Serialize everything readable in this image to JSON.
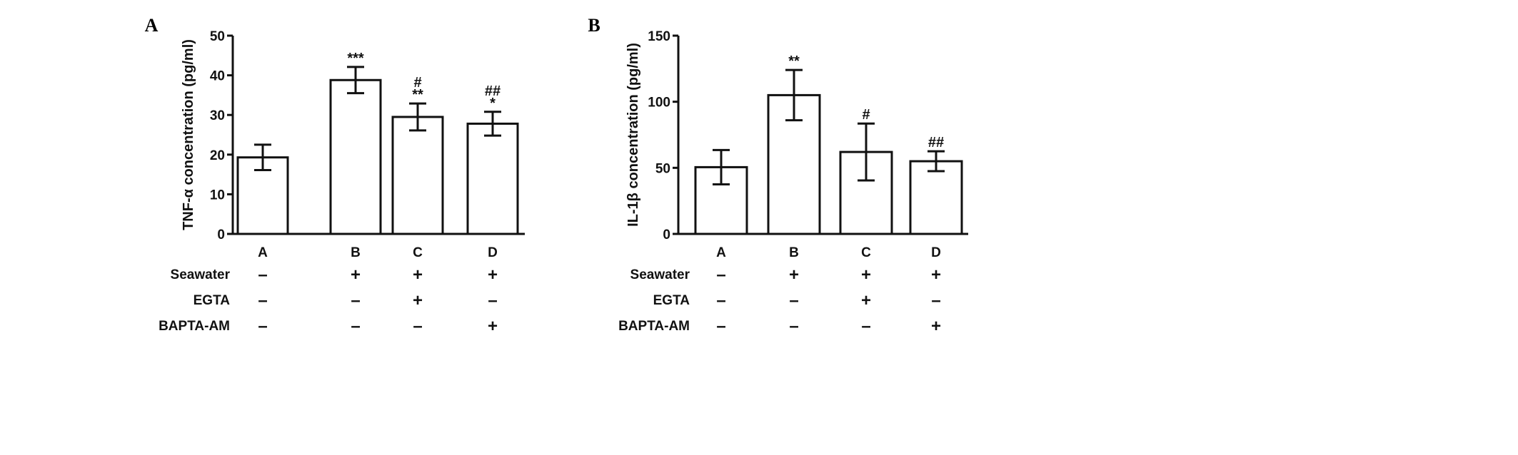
{
  "chart_data": [
    {
      "type": "bar",
      "panel_label": "A",
      "ylabel": "TNF-α concentration (pg/ml)",
      "ylim": [
        0,
        50
      ],
      "yticks": [
        "0",
        "10",
        "20",
        "30",
        "40",
        "50"
      ],
      "categories": [
        "A",
        "B",
        "C",
        "D"
      ],
      "values": [
        19.3,
        38.8,
        29.5,
        27.8
      ],
      "errors": [
        3.2,
        3.3,
        3.4,
        3.0
      ],
      "annotations": [
        "",
        "***",
        "#\n**",
        "##\n*"
      ],
      "grid": false,
      "bar_fill": "#ffffff",
      "bar_stroke": "#111111"
    },
    {
      "type": "bar",
      "panel_label": "B",
      "ylabel": "IL-1β concentration (pg/ml)",
      "ylim": [
        0,
        150
      ],
      "yticks": [
        "0",
        "50",
        "100",
        "150"
      ],
      "categories": [
        "A",
        "B",
        "C",
        "D"
      ],
      "values": [
        50.5,
        105,
        62,
        55
      ],
      "errors": [
        13,
        19,
        21.5,
        7.5
      ],
      "annotations": [
        "",
        "**",
        "#",
        "##"
      ],
      "grid": false,
      "bar_fill": "#ffffff",
      "bar_stroke": "#111111"
    }
  ],
  "treatment_table": {
    "rows": [
      {
        "label": "Seawater",
        "values": [
          "–",
          "+",
          "+",
          "+"
        ]
      },
      {
        "label": "EGTA",
        "values": [
          "–",
          "–",
          "+",
          "–"
        ]
      },
      {
        "label": "BAPTA-AM",
        "values": [
          "–",
          "–",
          "–",
          "+"
        ]
      }
    ]
  }
}
